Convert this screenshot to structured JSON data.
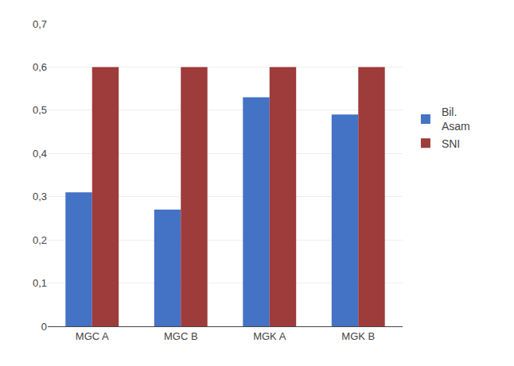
{
  "chart_data": {
    "type": "bar",
    "categories": [
      "MGC A",
      "MGC B",
      "MGK A",
      "MGK B"
    ],
    "series": [
      {
        "name": "Bil.\nAsam",
        "color": "#4472C4",
        "values": [
          0.31,
          0.27,
          0.53,
          0.49
        ]
      },
      {
        "name": "SNI",
        "color": "#9E3B3B",
        "values": [
          0.6,
          0.6,
          0.6,
          0.6
        ]
      }
    ],
    "ylim": [
      0,
      0.7
    ],
    "yticks": [
      0,
      {
        "value": 0.1,
        "label": "0,1"
      },
      {
        "value": 0.2,
        "label": "0,2"
      },
      {
        "value": 0.3,
        "label": "0,3"
      },
      {
        "value": 0.4,
        "label": "0,4"
      },
      {
        "value": 0.5,
        "label": "0,5"
      },
      {
        "value": 0.6,
        "label": "0,6"
      },
      {
        "value": 0.7,
        "label": "0,7"
      }
    ],
    "grid": true,
    "legend": "right"
  }
}
